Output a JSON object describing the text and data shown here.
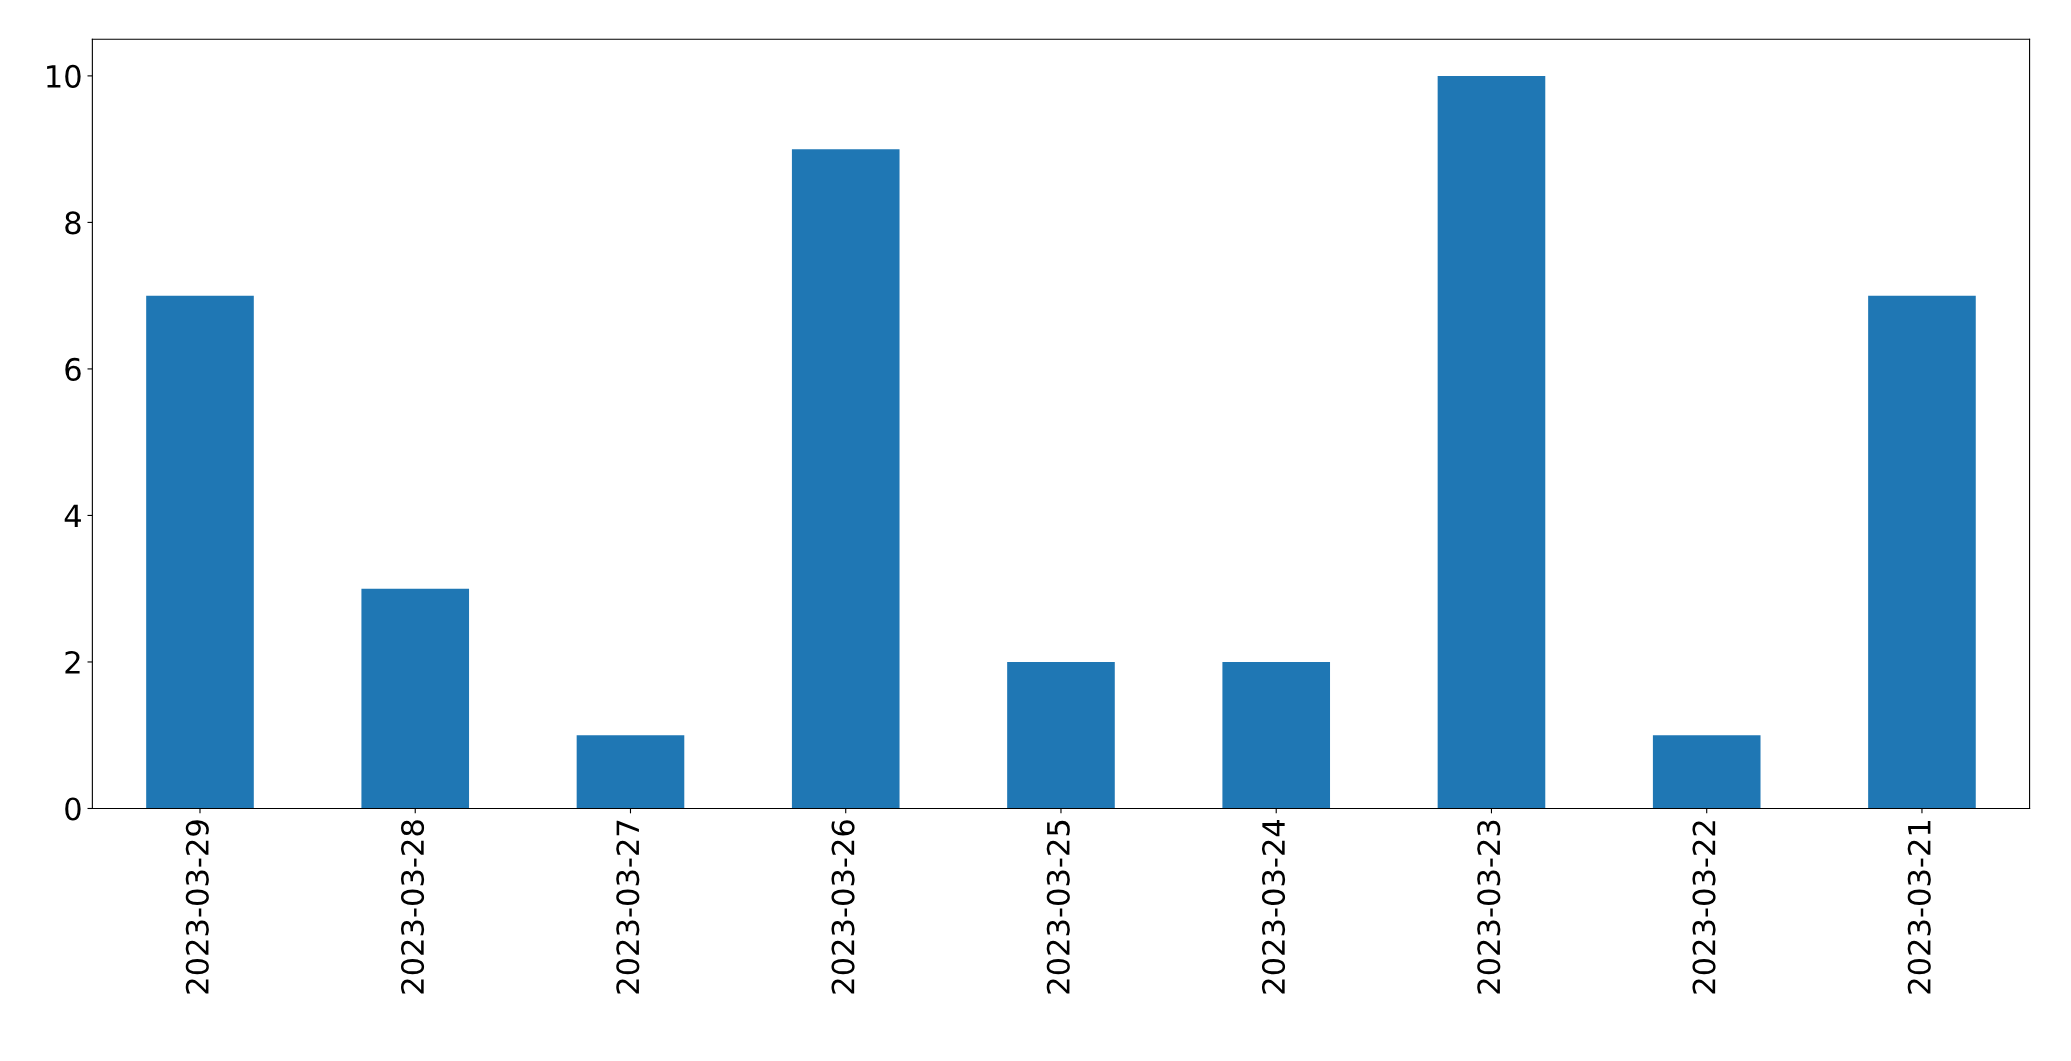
{
  "chart_data": {
    "type": "bar",
    "categories": [
      "2023-03-29",
      "2023-03-28",
      "2023-03-27",
      "2023-03-26",
      "2023-03-25",
      "2023-03-24",
      "2023-03-23",
      "2023-03-22",
      "2023-03-21"
    ],
    "values": [
      7,
      3,
      1,
      9,
      2,
      2,
      10,
      1,
      7
    ],
    "color": "#1f77b4",
    "ylim": [
      0,
      10.5
    ],
    "yticks": [
      0,
      2,
      4,
      6,
      8,
      10
    ],
    "grid": false,
    "legend": false
  }
}
